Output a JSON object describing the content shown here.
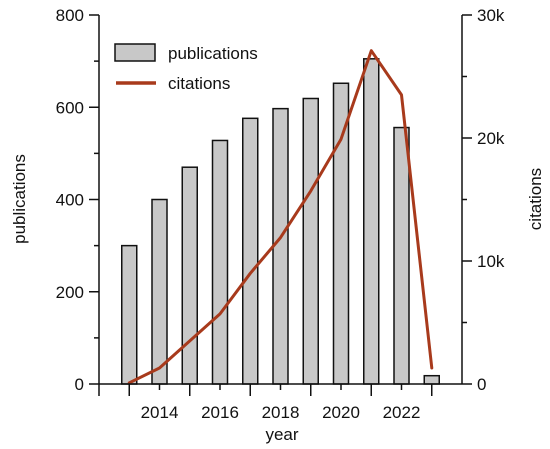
{
  "chart_data": {
    "type": "bar",
    "x": [
      2013,
      2014,
      2015,
      2016,
      2017,
      2018,
      2019,
      2020,
      2021,
      2022,
      2023
    ],
    "series": [
      {
        "name": "publications",
        "type": "bar",
        "axis": "left",
        "values": [
          300,
          400,
          470,
          528,
          576,
          597,
          619,
          652,
          705,
          556,
          18
        ]
      },
      {
        "name": "citations",
        "type": "line",
        "axis": "right",
        "values": [
          100,
          1300,
          3500,
          5700,
          9000,
          11900,
          15700,
          19900,
          27100,
          23500,
          1300
        ]
      }
    ],
    "xlabel": "year",
    "ylabel": "publications",
    "y2label": "citations",
    "ylim": [
      0,
      800
    ],
    "y2lim": [
      0,
      30000
    ],
    "xlim": [
      2012,
      2024
    ],
    "x_ticks": [
      "2014",
      "2016",
      "2018",
      "2020",
      "2022"
    ],
    "y_ticks": [
      "0",
      "200",
      "400",
      "600",
      "800"
    ],
    "y2_ticks": [
      "0",
      "10k",
      "20k",
      "30k"
    ],
    "legend_position": "top-left",
    "grid": false,
    "colors": {
      "bar_fill": "#c8c8c8",
      "bar_stroke": "#111111",
      "line": "#a83a1c",
      "axis": "#111111"
    }
  }
}
